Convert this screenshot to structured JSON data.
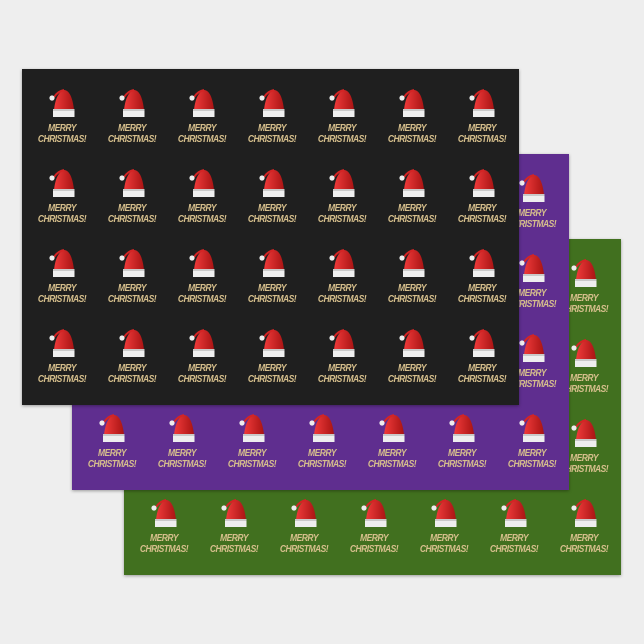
{
  "motif": {
    "line1": "MERRY",
    "line2": "CHRISTMAS!",
    "icon": "santa-hat-icon"
  },
  "colors": {
    "background": "#eeeeee",
    "text": "#d6bf8c",
    "hat_red": "#d42424",
    "hat_white": "#eeeeee"
  },
  "sheets": [
    {
      "name": "green",
      "color": "#41701f"
    },
    {
      "name": "purple",
      "color": "#5f2e8f"
    },
    {
      "name": "black",
      "color": "#1f1f1f"
    }
  ]
}
